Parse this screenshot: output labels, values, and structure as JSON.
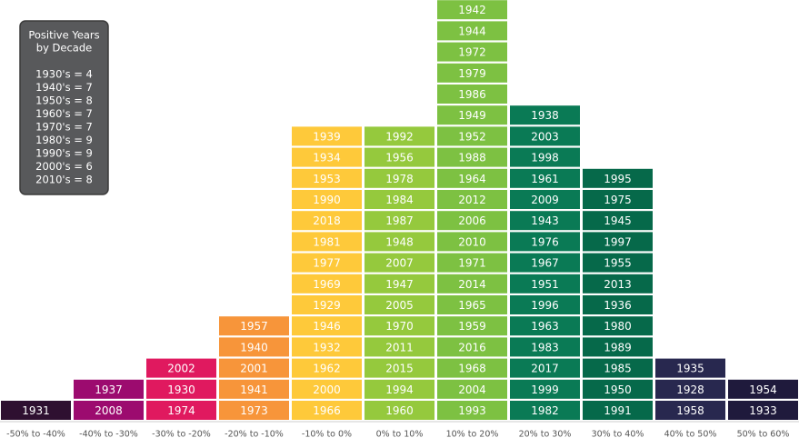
{
  "chart_data": {
    "type": "year-stack",
    "categories": [
      "-50% to -40%",
      "-40% to -30%",
      "-30% to -20%",
      "-20% to -10%",
      "-10% to 0%",
      "0% to 10%",
      "10% to 20%",
      "20% to 30%",
      "30% to 40%",
      "40% to 50%",
      "50% to 60%"
    ],
    "colors": [
      "#2e1030",
      "#9c0b6f",
      "#e0195f",
      "#f7953a",
      "#fec93a",
      "#95c93d",
      "#7dc142",
      "#0a7a55",
      "#06694a",
      "#28284f",
      "#1f1a3c"
    ],
    "years": [
      [
        "1931"
      ],
      [
        "2008",
        "1937"
      ],
      [
        "1974",
        "1930",
        "2002"
      ],
      [
        "1973",
        "1941",
        "2001",
        "1940",
        "1957"
      ],
      [
        "1966",
        "2000",
        "1962",
        "1932",
        "1946",
        "1929",
        "1969",
        "1977",
        "1981",
        "2018",
        "1990",
        "1953",
        "1934",
        "1939"
      ],
      [
        "1960",
        "1994",
        "2015",
        "2011",
        "1970",
        "2005",
        "1947",
        "2007",
        "1948",
        "1987",
        "1984",
        "1978",
        "1956",
        "1992"
      ],
      [
        "1993",
        "2004",
        "1968",
        "2016",
        "1959",
        "1965",
        "2014",
        "1971",
        "2010",
        "2006",
        "2012",
        "1964",
        "1988",
        "1952",
        "1949",
        "1986",
        "1979",
        "1972",
        "1944",
        "1942"
      ],
      [
        "1982",
        "1999",
        "2017",
        "1983",
        "1963",
        "1996",
        "1951",
        "1967",
        "1976",
        "1943",
        "2009",
        "1961",
        "1998",
        "2003",
        "1938"
      ],
      [
        "1991",
        "1950",
        "1985",
        "1989",
        "1980",
        "1936",
        "2013",
        "1955",
        "1997",
        "1945",
        "1975",
        "1995"
      ],
      [
        "1958",
        "1928",
        "1935"
      ],
      [
        "1933",
        "1954"
      ]
    ],
    "legend": {
      "title": [
        "Positive Years",
        "by Decade"
      ],
      "entries": [
        "1930's = 4",
        "1940's = 7",
        "1950's = 8",
        "1960's = 7",
        "1970's = 7",
        "1980's = 9",
        "1990's = 9",
        "2000's = 6",
        "2010's = 8"
      ]
    }
  }
}
